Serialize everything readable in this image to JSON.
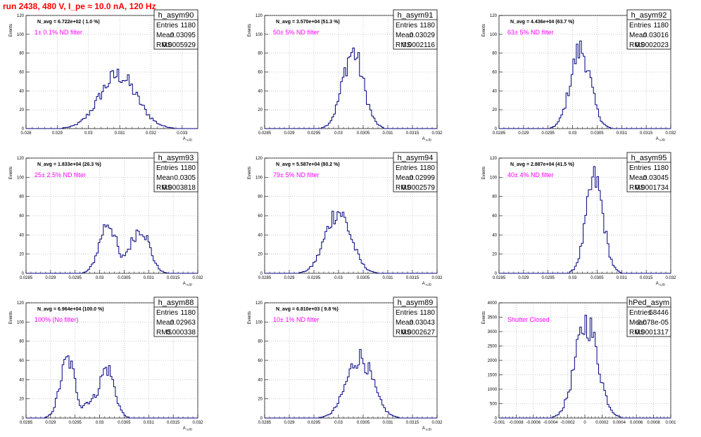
{
  "run_title": "run 2438,   480 V, I_pe ≈ 10.0 nA, 120 Hz",
  "stat_labels": [
    "Entries",
    "Mean",
    "RMS"
  ],
  "line_color": "#00007f",
  "title_color": "#ff0000",
  "filter_color": "#ff00ff",
  "chart_data": [
    {
      "type": "histogram",
      "name": "h_asym90",
      "annotation": "N_avg = 6.722e+02 ( 1.0 %)",
      "filter_label": "1± 0.1% ND filter",
      "stats": {
        "Entries": "1180",
        "Mean": "0.03095",
        "RMS": "0.0005929"
      },
      "xlim": [
        0.028,
        0.0335
      ],
      "ylim": [
        0,
        120
      ],
      "xticks": [
        0.028,
        0.029,
        0.03,
        0.031,
        0.032,
        0.033
      ],
      "xtick_labels": [
        "0.028",
        "0.029",
        "0.03",
        "0.031",
        "0.032",
        "0.033"
      ],
      "yticks": [
        0,
        20,
        40,
        60,
        80,
        100,
        120
      ],
      "xlabel": "A_uJD",
      "ylabel": "Events",
      "mean": 0.03095,
      "rms": 0.0005929,
      "peak": 58,
      "shape": "single"
    },
    {
      "type": "histogram",
      "name": "h_asym91",
      "annotation": "N_avg = 3.570e+04 (51.3 %)",
      "filter_label": "50± 5% ND filter",
      "stats": {
        "Entries": "1180",
        "Mean": "0.03029",
        "RMS": "0.0002116"
      },
      "xlim": [
        0.0285,
        0.032
      ],
      "ylim": [
        0,
        120
      ],
      "xticks": [
        0.0285,
        0.029,
        0.0295,
        0.03,
        0.0305,
        0.031,
        0.0315,
        0.032
      ],
      "xtick_labels": [
        "0.0285",
        "0.029",
        "0.0295",
        "0.03",
        "0.0305",
        "0.031",
        "0.0315",
        "0.032"
      ],
      "yticks": [
        0,
        20,
        40,
        60,
        80,
        100,
        120
      ],
      "xlabel": "A_uJD",
      "ylabel": "Events",
      "mean": 0.03029,
      "rms": 0.0002116,
      "peak": 83,
      "shape": "single"
    },
    {
      "type": "histogram",
      "name": "h_asym92",
      "annotation": "N_avg = 4.436e+04 (63.7 %)",
      "filter_label": "63± 5% ND filter",
      "stats": {
        "Entries": "1180",
        "Mean": "0.03016",
        "RMS": "0.0002023"
      },
      "xlim": [
        0.0285,
        0.032
      ],
      "ylim": [
        0,
        120
      ],
      "xticks": [
        0.0285,
        0.029,
        0.0295,
        0.03,
        0.0305,
        0.031,
        0.0315,
        0.032
      ],
      "xtick_labels": [
        "0.0285",
        "0.029",
        "0.0295",
        "0.03",
        "0.0305",
        "0.031",
        "0.0315",
        "0.032"
      ],
      "yticks": [
        0,
        20,
        40,
        60,
        80,
        100,
        120
      ],
      "xlabel": "A_uJD",
      "ylabel": "Events",
      "mean": 0.03016,
      "rms": 0.0002023,
      "peak": 86,
      "shape": "single"
    },
    {
      "type": "histogram",
      "name": "h_asym93",
      "annotation": "N_avg = 1.833e+04 (26.3 %)",
      "filter_label": "25± 2.5% ND filter",
      "stats": {
        "Entries": "1180",
        "Mean": "0.0305",
        "RMS": "0.0003818"
      },
      "xlim": [
        0.0285,
        0.032
      ],
      "ylim": [
        0,
        120
      ],
      "xticks": [
        0.0285,
        0.029,
        0.0295,
        0.03,
        0.0305,
        0.031,
        0.0315,
        0.032
      ],
      "xtick_labels": [
        "0.0285",
        "0.029",
        "0.0295",
        "0.03",
        "0.0305",
        "0.031",
        "0.0315",
        "0.032"
      ],
      "yticks": [
        0,
        20,
        40,
        60,
        80,
        100,
        120
      ],
      "xlabel": "A_uJD",
      "ylabel": "Events",
      "mean": 0.0305,
      "rms": 0.0003818,
      "peak": 54,
      "shape": "double",
      "peaks": [
        0.03017,
        0.03085
      ]
    },
    {
      "type": "histogram",
      "name": "h_asym94",
      "annotation": "N_avg = 5.587e+04 (80.2 %)",
      "filter_label": "79± 5% ND filter",
      "stats": {
        "Entries": "1180",
        "Mean": "0.02999",
        "RMS": "0.0002579"
      },
      "xlim": [
        0.0285,
        0.032
      ],
      "ylim": [
        0,
        120
      ],
      "xticks": [
        0.0285,
        0.029,
        0.0295,
        0.03,
        0.0305,
        0.031,
        0.0315,
        0.032
      ],
      "xtick_labels": [
        "0.0285",
        "0.029",
        "0.0295",
        "0.03",
        "0.0305",
        "0.031",
        "0.0315",
        "0.032"
      ],
      "yticks": [
        0,
        20,
        40,
        60,
        80,
        100,
        120
      ],
      "xlabel": "A_uJD",
      "ylabel": "Events",
      "mean": 0.02999,
      "rms": 0.0002579,
      "peak": 66,
      "shape": "single"
    },
    {
      "type": "histogram",
      "name": "h_asym95",
      "annotation": "N_avg = 2.887e+04 (41.5 %)",
      "filter_label": "40± 4% ND filter",
      "stats": {
        "Entries": "1180",
        "Mean": "0.03045",
        "RMS": "0.0001734"
      },
      "xlim": [
        0.0285,
        0.032
      ],
      "ylim": [
        0,
        120
      ],
      "xticks": [
        0.0285,
        0.029,
        0.0295,
        0.03,
        0.0305,
        0.031,
        0.0315,
        0.032
      ],
      "xtick_labels": [
        "0.0285",
        "0.029",
        "0.0295",
        "0.03",
        "0.0305",
        "0.031",
        "0.0315",
        "0.032"
      ],
      "yticks": [
        0,
        20,
        40,
        60,
        80,
        100,
        120
      ],
      "xlabel": "A_uJD",
      "ylabel": "Events",
      "mean": 0.03045,
      "rms": 0.0001734,
      "peak": 100,
      "shape": "single"
    },
    {
      "type": "histogram",
      "name": "h_asym88",
      "annotation": "N_avg = 6.964e+04 (100.0 %)",
      "filter_label": "100% (No filter)",
      "stats": {
        "Entries": "1180",
        "Mean": "0.02963",
        "RMS": "0.000338"
      },
      "xlim": [
        0.0285,
        0.032
      ],
      "ylim": [
        0,
        120
      ],
      "xticks": [
        0.0285,
        0.029,
        0.0295,
        0.03,
        0.0305,
        0.031,
        0.0315,
        0.032
      ],
      "xtick_labels": [
        "0.0285",
        "0.029",
        "0.0295",
        "0.03",
        "0.0305",
        "0.031",
        "0.0315",
        "0.032"
      ],
      "yticks": [
        0,
        20,
        40,
        60,
        80,
        100,
        120
      ],
      "xlabel": "A_uJD",
      "ylabel": "Events",
      "mean": 0.02963,
      "rms": 0.000338,
      "peak": 62,
      "shape": "double",
      "peaks": [
        0.02935,
        0.03015
      ]
    },
    {
      "type": "histogram",
      "name": "h_asym89",
      "annotation": "N_avg = 6.810e+03 ( 9.8 %)",
      "filter_label": "10± 1% ND filter",
      "stats": {
        "Entries": "1180",
        "Mean": "0.03043",
        "RMS": "0.0002627"
      },
      "xlim": [
        0.0285,
        0.032
      ],
      "ylim": [
        0,
        120
      ],
      "xticks": [
        0.0285,
        0.029,
        0.0295,
        0.03,
        0.0305,
        0.031,
        0.0315,
        0.032
      ],
      "xtick_labels": [
        "0.0285",
        "0.029",
        "0.0295",
        "0.03",
        "0.0305",
        "0.031",
        "0.0315",
        "0.032"
      ],
      "yticks": [
        0,
        20,
        40,
        60,
        80,
        100,
        120
      ],
      "xlabel": "A_uJD",
      "ylabel": "Events",
      "mean": 0.03043,
      "rms": 0.0002627,
      "peak": 65,
      "shape": "single"
    },
    {
      "type": "histogram",
      "name": "hPed_asym",
      "annotation": "",
      "filter_label": "Shutter Closed",
      "stats": {
        "Entries": "58446",
        "Mean": "2.078e-05",
        "RMS": "0.0001317"
      },
      "xlim": [
        -0.001,
        0.001
      ],
      "ylim": [
        0,
        4000
      ],
      "xticks": [
        -0.001,
        -0.0008,
        -0.0006,
        -0.0004,
        -0.0002,
        0,
        0.0002,
        0.0004,
        0.0006,
        0.0008,
        0.001
      ],
      "xtick_labels": [
        "-0.001",
        "-0.0008",
        "-0.0006",
        "-0.0004",
        "-0.0002",
        "0",
        "0.0002",
        "0.0004",
        "0.0006",
        "0.0008",
        "0.001"
      ],
      "yticks": [
        0,
        500,
        1000,
        1500,
        2000,
        2500,
        3000,
        3500,
        4000
      ],
      "xlabel": "",
      "ylabel": "Events",
      "mean": 2.078e-05,
      "rms": 0.0001317,
      "peak": 3400,
      "shape": "single"
    }
  ]
}
